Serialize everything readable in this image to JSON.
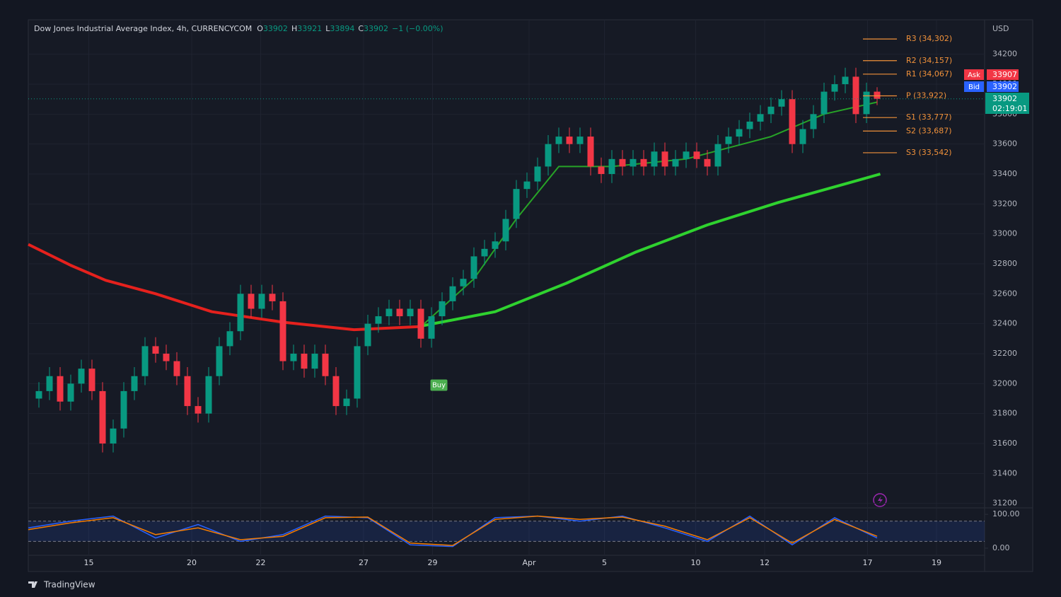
{
  "chart_data": {
    "type": "candlestick",
    "title": "Dow Jones Industrial Average Index, 4h, CURRENCYCOM",
    "quote": {
      "labels": [
        "O",
        "H",
        "L",
        "C"
      ],
      "values": [
        33902,
        33921,
        33894,
        33902
      ],
      "change": "−1 (−0.00%)"
    },
    "currency": "USD",
    "up_color": "#089981",
    "down_color": "#f23645",
    "x": [
      1,
      2,
      3,
      4,
      5,
      6,
      7,
      8,
      9,
      10,
      11,
      12,
      13,
      14,
      15,
      16,
      17,
      18,
      19,
      20,
      21,
      22,
      23,
      24,
      25,
      26,
      27,
      28,
      29,
      30,
      31,
      32,
      33,
      34,
      35,
      36,
      37,
      38,
      39,
      40,
      41,
      42,
      43,
      44,
      45,
      46,
      47,
      48,
      49,
      50,
      51,
      52,
      53,
      54,
      55,
      56,
      57,
      58,
      59,
      60,
      61,
      62,
      63,
      64,
      65,
      66,
      67,
      68,
      69,
      70,
      71,
      72,
      73,
      74,
      75,
      76,
      77,
      78,
      79,
      80
    ],
    "open": [
      31900,
      31950,
      32050,
      31880,
      32000,
      32100,
      31950,
      31600,
      31700,
      31950,
      32050,
      32250,
      32200,
      32150,
      32050,
      31850,
      31800,
      32050,
      32250,
      32350,
      32600,
      32500,
      32600,
      32550,
      32150,
      32200,
      32100,
      32200,
      32050,
      31850,
      31900,
      32250,
      32400,
      32450,
      32500,
      32450,
      32500,
      32300,
      32450,
      32550,
      32650,
      32700,
      32850,
      32900,
      32950,
      33100,
      33300,
      33350,
      33450,
      33600,
      33650,
      33600,
      33650,
      33450,
      33400,
      33500,
      33450,
      33500,
      33450,
      33550,
      33450,
      33500,
      33550,
      33500,
      33450,
      33600,
      33650,
      33700,
      33750,
      33800,
      33850,
      33900,
      33600,
      33700,
      33800,
      33950,
      34000,
      34050,
      33800,
      33950
    ],
    "high": [
      32010,
      32110,
      32110,
      32060,
      32160,
      32160,
      32010,
      31760,
      32010,
      32110,
      32310,
      32310,
      32260,
      32210,
      32110,
      31910,
      32110,
      32310,
      32410,
      32660,
      32660,
      32660,
      32660,
      32610,
      32260,
      32260,
      32260,
      32260,
      32110,
      31960,
      32310,
      32460,
      32510,
      32560,
      32560,
      32560,
      32560,
      32510,
      32610,
      32710,
      32760,
      32910,
      32960,
      33010,
      33160,
      33360,
      33410,
      33510,
      33660,
      33710,
      33710,
      33710,
      33710,
      33510,
      33560,
      33560,
      33560,
      33560,
      33610,
      33610,
      33560,
      33610,
      33610,
      33560,
      33660,
      33710,
      33760,
      33810,
      33860,
      33910,
      33960,
      33960,
      33760,
      33860,
      34010,
      34060,
      34110,
      34110,
      34010,
      33980
    ],
    "low": [
      31840,
      31890,
      31820,
      31820,
      31940,
      31890,
      31540,
      31540,
      31640,
      31890,
      31990,
      32140,
      32090,
      31990,
      31790,
      31740,
      31740,
      31990,
      32190,
      32290,
      32440,
      32440,
      32490,
      32090,
      32090,
      32040,
      32040,
      31990,
      31790,
      31790,
      31840,
      32190,
      32340,
      32390,
      32390,
      32390,
      32240,
      32240,
      32390,
      32490,
      32590,
      32640,
      32790,
      32840,
      32890,
      33040,
      33240,
      33290,
      33390,
      33540,
      33540,
      33540,
      33390,
      33340,
      33340,
      33390,
      33390,
      33390,
      33390,
      33390,
      33390,
      33440,
      33440,
      33390,
      33390,
      33540,
      33590,
      33640,
      33690,
      33740,
      33790,
      33540,
      33540,
      33640,
      33740,
      33890,
      33940,
      33740,
      33740,
      33860
    ],
    "close": [
      31950,
      32050,
      31880,
      32000,
      32100,
      31950,
      31600,
      31700,
      31950,
      32050,
      32250,
      32200,
      32150,
      32050,
      31850,
      31800,
      32050,
      32250,
      32350,
      32600,
      32500,
      32600,
      32550,
      32150,
      32200,
      32100,
      32200,
      32050,
      31850,
      31900,
      32250,
      32400,
      32450,
      32500,
      32450,
      32500,
      32300,
      32450,
      32550,
      32650,
      32700,
      32850,
      32900,
      32950,
      33100,
      33300,
      33350,
      33450,
      33600,
      33650,
      33600,
      33650,
      33450,
      33400,
      33500,
      33450,
      33500,
      33450,
      33550,
      33450,
      33500,
      33550,
      33500,
      33450,
      33600,
      33650,
      33700,
      33750,
      33800,
      33850,
      33900,
      33600,
      33700,
      33800,
      33950,
      34000,
      34050,
      33800,
      33950,
      33902
    ],
    "xlim": [
      0,
      90
    ],
    "xticks": [
      {
        "value": 5.7,
        "label": "15"
      },
      {
        "value": 15.4,
        "label": "20"
      },
      {
        "value": 21.9,
        "label": "22"
      },
      {
        "value": 31.6,
        "label": "27"
      },
      {
        "value": 38.1,
        "label": "29"
      },
      {
        "value": 47.2,
        "label": "Apr"
      },
      {
        "value": 54.3,
        "label": "5"
      },
      {
        "value": 62.9,
        "label": "10"
      },
      {
        "value": 69.4,
        "label": "12"
      },
      {
        "value": 79.1,
        "label": "17"
      },
      {
        "value": 85.6,
        "label": "19"
      }
    ],
    "ylim": [
      31170,
      34430
    ],
    "yticks": [
      31200,
      31400,
      31600,
      31800,
      32000,
      32200,
      32400,
      32600,
      32800,
      33000,
      33200,
      33400,
      33600,
      33800,
      34000,
      34200
    ],
    "grid": true,
    "moving_averages": [
      {
        "color": "#e5211d",
        "width": 4,
        "x": [
          0,
          4,
          7.3,
          12,
          17.3,
          24,
          30.7,
          36.7
        ],
        "values": [
          32930,
          32790,
          32690,
          32600,
          32480,
          32410,
          32360,
          32380
        ]
      },
      {
        "color": "#2fd22f",
        "width": 4,
        "x": [
          36.7,
          44,
          50.7,
          57.3,
          64,
          70.7,
          77.3,
          80.3
        ],
        "values": [
          32380,
          32480,
          32670,
          32880,
          33060,
          33210,
          33340,
          33400
        ]
      },
      {
        "color": "#27a327",
        "width": 2,
        "x": [
          37,
          42,
          46,
          50,
          55,
          62,
          70,
          75,
          80
        ],
        "values": [
          32380,
          32700,
          33100,
          33450,
          33450,
          33500,
          33650,
          33800,
          33880
        ]
      }
    ],
    "pivots": [
      {
        "value": 34302,
        "label": "R3 (34,302)"
      },
      {
        "value": 34157,
        "label": "R2 (34,157)"
      },
      {
        "value": 34067,
        "label": "R1 (34,067)"
      },
      {
        "value": 33922,
        "label": "P (33,922)"
      },
      {
        "value": 33777,
        "label": "S1 (33,777)"
      },
      {
        "value": 33687,
        "label": "S2 (33,687)"
      },
      {
        "value": 33542,
        "label": "S3 (33,542)"
      }
    ],
    "pivot_color": "#f0913a",
    "ask": {
      "label": "Ask",
      "value": 33907,
      "color": "#f23645"
    },
    "bid": {
      "label": "Bid",
      "value": 33902,
      "color": "#2962ff"
    },
    "last": {
      "value": 33902,
      "countdown": "02:19:01"
    },
    "annotations": [
      {
        "text": "Buy",
        "x": 38.7,
        "y": 31990
      }
    ],
    "oscillator": {
      "ylim": [
        -21,
        115
      ],
      "yticks": [
        {
          "value": 100,
          "label": "100.00"
        },
        {
          "value": 0,
          "label": "0.00"
        }
      ],
      "bands": [
        20,
        80
      ],
      "series": [
        {
          "color": "#2962ff",
          "x": [
            0,
            4,
            8,
            12,
            16,
            20,
            24,
            28,
            32,
            36,
            40,
            44,
            48,
            52,
            56,
            60,
            64,
            68,
            72,
            76,
            80
          ],
          "values": [
            60,
            80,
            95,
            30,
            70,
            20,
            40,
            95,
            90,
            10,
            5,
            90,
            95,
            80,
            95,
            60,
            20,
            95,
            10,
            90,
            30
          ]
        },
        {
          "color": "#f57c00",
          "x": [
            0,
            4,
            8,
            12,
            16,
            20,
            24,
            28,
            32,
            36,
            40,
            44,
            48,
            52,
            56,
            60,
            64,
            68,
            72,
            76,
            80
          ],
          "values": [
            55,
            75,
            90,
            40,
            60,
            25,
            35,
            90,
            92,
            15,
            8,
            85,
            95,
            85,
            92,
            65,
            25,
            90,
            15,
            85,
            35
          ]
        }
      ]
    }
  },
  "footer": {
    "brand": "TradingView"
  }
}
